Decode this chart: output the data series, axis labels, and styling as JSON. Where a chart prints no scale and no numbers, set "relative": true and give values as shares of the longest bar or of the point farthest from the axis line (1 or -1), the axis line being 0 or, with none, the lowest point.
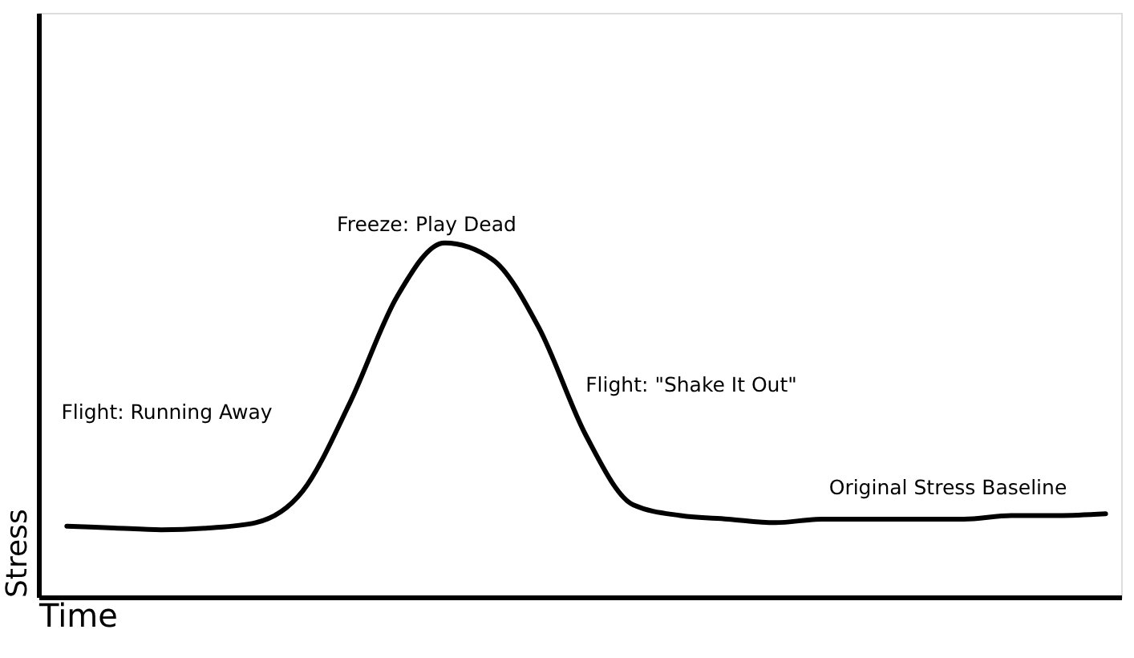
{
  "chart_data": {
    "type": "line",
    "relative": true,
    "xlabel": "Time",
    "ylabel": "Stress",
    "categories": [
      null,
      null,
      null,
      null,
      null,
      null,
      null,
      null,
      null,
      null,
      null,
      null,
      null,
      null,
      null,
      null,
      null,
      null,
      null,
      null,
      null,
      null,
      null
    ],
    "series": [
      {
        "color": "#000000",
        "values": [
          0.2,
          0.195,
          0.19,
          0.195,
          0.21,
          0.3,
          0.55,
          0.85,
          1.0,
          0.955,
          0.76,
          0.455,
          0.26,
          0.23,
          0.22,
          0.21,
          0.22,
          0.22,
          0.22,
          0.22,
          0.23,
          0.23,
          0.235
        ]
      }
    ],
    "annotations": [
      "Flight: Running Away",
      "Freeze: Play Dead",
      "Flight: \"Shake It Out\"",
      "Original Stress Baseline"
    ],
    "grid": false
  }
}
